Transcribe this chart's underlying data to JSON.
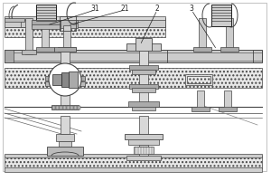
{
  "bg": "#ffffff",
  "lc": "#444444",
  "dc": "#222222",
  "gray1": "#cccccc",
  "gray2": "#aaaaaa",
  "gray3": "#888888",
  "gray_light": "#e0e0e0",
  "hatch_bg": "#e4e4e4"
}
